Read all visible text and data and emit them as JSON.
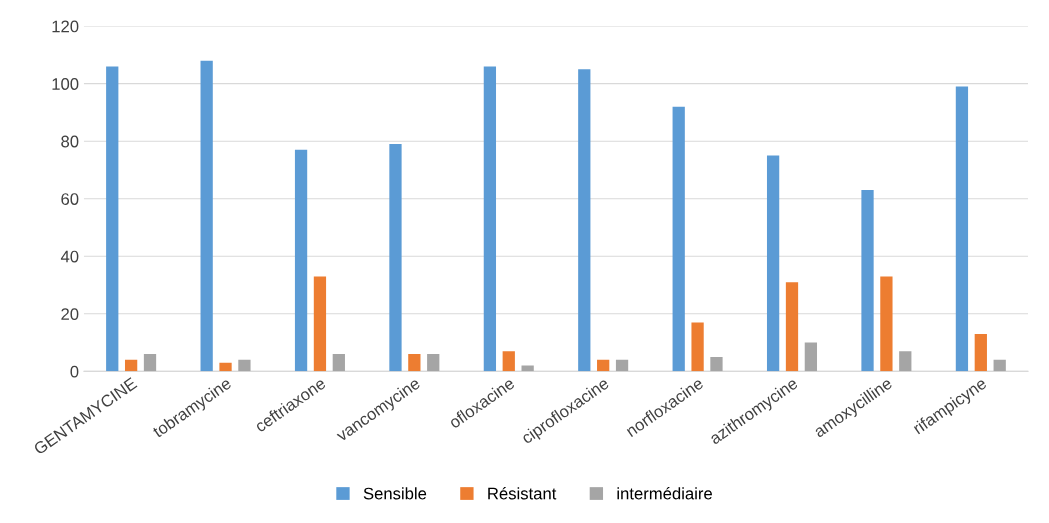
{
  "chart_data": {
    "type": "bar",
    "categories": [
      "GENTAMYCINE",
      "tobramycine",
      "ceftriaxone",
      "vancomycine",
      "ofloxacine",
      "ciprofloxacine",
      "norfloxacine",
      "azithromycine",
      "amoxycilline",
      "rifampicyne"
    ],
    "series": [
      {
        "name": "Sensible",
        "color": "#5b9bd5",
        "values": [
          106,
          108,
          77,
          79,
          106,
          105,
          92,
          75,
          63,
          99
        ]
      },
      {
        "name": "Résistant",
        "color": "#ed7d31",
        "values": [
          4,
          3,
          33,
          6,
          7,
          4,
          17,
          31,
          33,
          13
        ]
      },
      {
        "name": "intermédiaire",
        "color": "#a5a5a5",
        "values": [
          6,
          4,
          6,
          6,
          2,
          4,
          5,
          10,
          7,
          4
        ]
      }
    ],
    "ylim": [
      0,
      120
    ],
    "yticks": [
      0,
      20,
      40,
      60,
      80,
      100,
      120
    ],
    "grid": "y",
    "legend": "bottom"
  }
}
